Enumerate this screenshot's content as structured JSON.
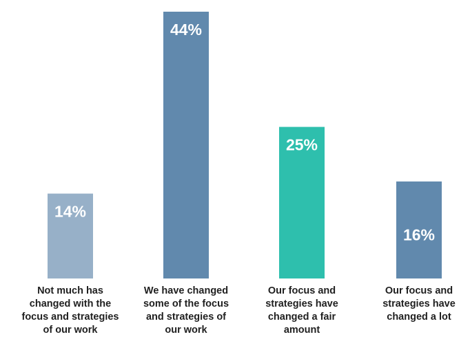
{
  "chart_data": {
    "type": "bar",
    "categories": [
      "Not much has changed with the focus and strategies of our work",
      "We have changed some of the focus and strategies of our work",
      "Our focus and strategies have changed a fair amount",
      "Our focus and strategies have changed a lot"
    ],
    "category_lines": [
      [
        "Not much has",
        "changed with the",
        "focus and strategies",
        "of our work"
      ],
      [
        "We have changed",
        "some of the focus",
        "and strategies of",
        "our work"
      ],
      [
        "Our focus and",
        "strategies have",
        "changed a fair",
        "amount"
      ],
      [
        "Our focus and",
        "strategies have",
        "changed a lot"
      ]
    ],
    "values": [
      14,
      44,
      25,
      16
    ],
    "data_labels": [
      "14%",
      "44%",
      "25%",
      "16%"
    ],
    "bar_colors": [
      "#97b0c8",
      "#6189ad",
      "#2ebfad",
      "#6189ad"
    ],
    "ylim": [
      0,
      44
    ],
    "grid": false,
    "legend": "none"
  }
}
